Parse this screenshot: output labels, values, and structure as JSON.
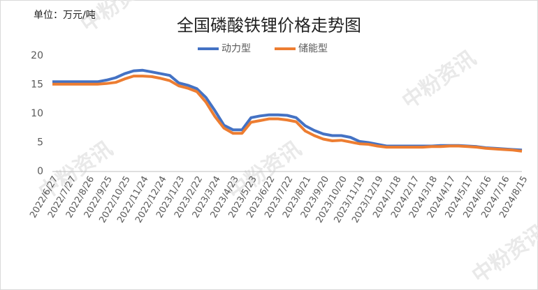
{
  "chart_data": {
    "type": "line",
    "title": "全国磷酸铁锂价格走势图",
    "unit_note": "单位：万元/吨",
    "watermark": "中粉资讯",
    "categories": [
      "2022/6/27",
      null,
      "2022/7/27",
      null,
      "2022/8/26",
      null,
      "2022/9/25",
      null,
      "2022/10/25",
      null,
      "2022/11/24",
      null,
      "2022/12/24",
      null,
      "2023/1/23",
      null,
      "2023/2/22",
      null,
      "2023/3/24",
      null,
      "2023/4/23",
      null,
      "2023/5/23",
      null,
      "2023/6/22",
      null,
      "2023/7/22",
      null,
      "2023/8/21",
      null,
      "2023/9/20",
      null,
      "2023/10/20",
      null,
      "2023/11/19",
      null,
      "2023/12/19",
      null,
      "2024/1/18",
      null,
      "2024/2/17",
      null,
      "2024/3/18",
      null,
      "2024/4/17",
      null,
      "2024/5/17",
      null,
      "2024/6/16",
      null,
      "2024/7/16",
      null,
      "2024/8/15"
    ],
    "series": [
      {
        "name": "动力型",
        "color": "#4472c4",
        "values": [
          15.5,
          15.5,
          15.5,
          15.5,
          15.5,
          15.5,
          15.8,
          16.2,
          16.9,
          17.4,
          17.5,
          17.2,
          16.9,
          16.6,
          15.3,
          14.9,
          14.3,
          12.8,
          10.5,
          8.0,
          7.2,
          7.2,
          9.3,
          9.6,
          9.8,
          9.8,
          9.7,
          9.3,
          7.9,
          7.1,
          6.5,
          6.2,
          6.2,
          5.9,
          5.2,
          5.0,
          4.7,
          4.4,
          4.4,
          4.4,
          4.4,
          4.4,
          4.4,
          4.5,
          4.5,
          4.5,
          4.4,
          4.3,
          4.1,
          4.0,
          3.9,
          3.8,
          3.7
        ]
      },
      {
        "name": "储能型",
        "color": "#ed7d31",
        "values": [
          15.1,
          15.1,
          15.1,
          15.1,
          15.1,
          15.1,
          15.2,
          15.4,
          16.0,
          16.5,
          16.5,
          16.4,
          16.1,
          15.7,
          14.8,
          14.4,
          13.8,
          12.0,
          9.5,
          7.5,
          6.6,
          6.6,
          8.5,
          8.8,
          9.1,
          9.1,
          8.9,
          8.6,
          7.0,
          6.2,
          5.6,
          5.3,
          5.4,
          5.1,
          4.8,
          4.7,
          4.4,
          4.2,
          4.2,
          4.2,
          4.2,
          4.2,
          4.3,
          4.3,
          4.4,
          4.4,
          4.3,
          4.2,
          4.0,
          3.9,
          3.8,
          3.7,
          3.5
        ]
      }
    ],
    "ylim": [
      0,
      20
    ],
    "yticks": [
      0,
      5,
      10,
      15,
      20
    ],
    "grid": false,
    "legend": "top"
  }
}
